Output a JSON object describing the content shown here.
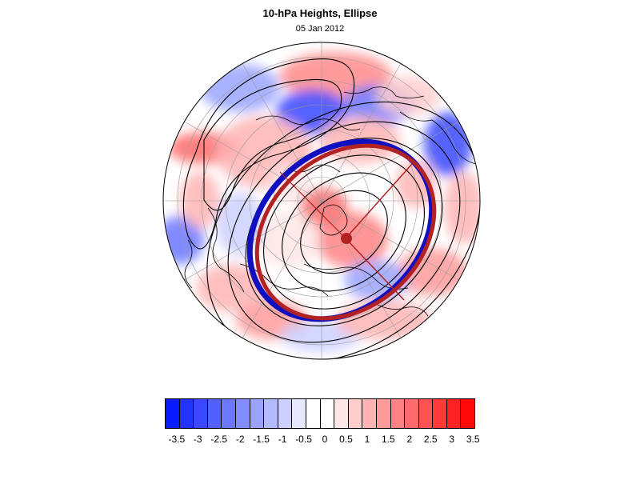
{
  "figure": {
    "title": "10-hPa Heights, Ellipse",
    "date": "05 Jan 2012"
  },
  "colorbar": {
    "labels": [
      "-3.5",
      "-3",
      "-2.5",
      "-2",
      "-1.5",
      "-1",
      "-0.5",
      "0",
      "0.5",
      "1",
      "1.5",
      "2",
      "2.5",
      "3",
      "3.5"
    ],
    "colors": [
      "#0a1cff",
      "#2233ff",
      "#3a49ff",
      "#5260ff",
      "#6b77ff",
      "#838dff",
      "#9ba3ff",
      "#b4baff",
      "#ccd0ff",
      "#e6e8ff",
      "#ffffff",
      "#ffffff",
      "#ffe6e6",
      "#ffcccc",
      "#ffb4b4",
      "#ff9b9b",
      "#ff8383",
      "#ff6b6b",
      "#ff5252",
      "#ff3a3a",
      "#ff2222",
      "#ff0a0a"
    ]
  },
  "map": {
    "projection": "polar stereographic (north)",
    "ellipse_colors": {
      "red": "#b22222",
      "blue": "#1010c0",
      "center": "#b22222"
    }
  }
}
